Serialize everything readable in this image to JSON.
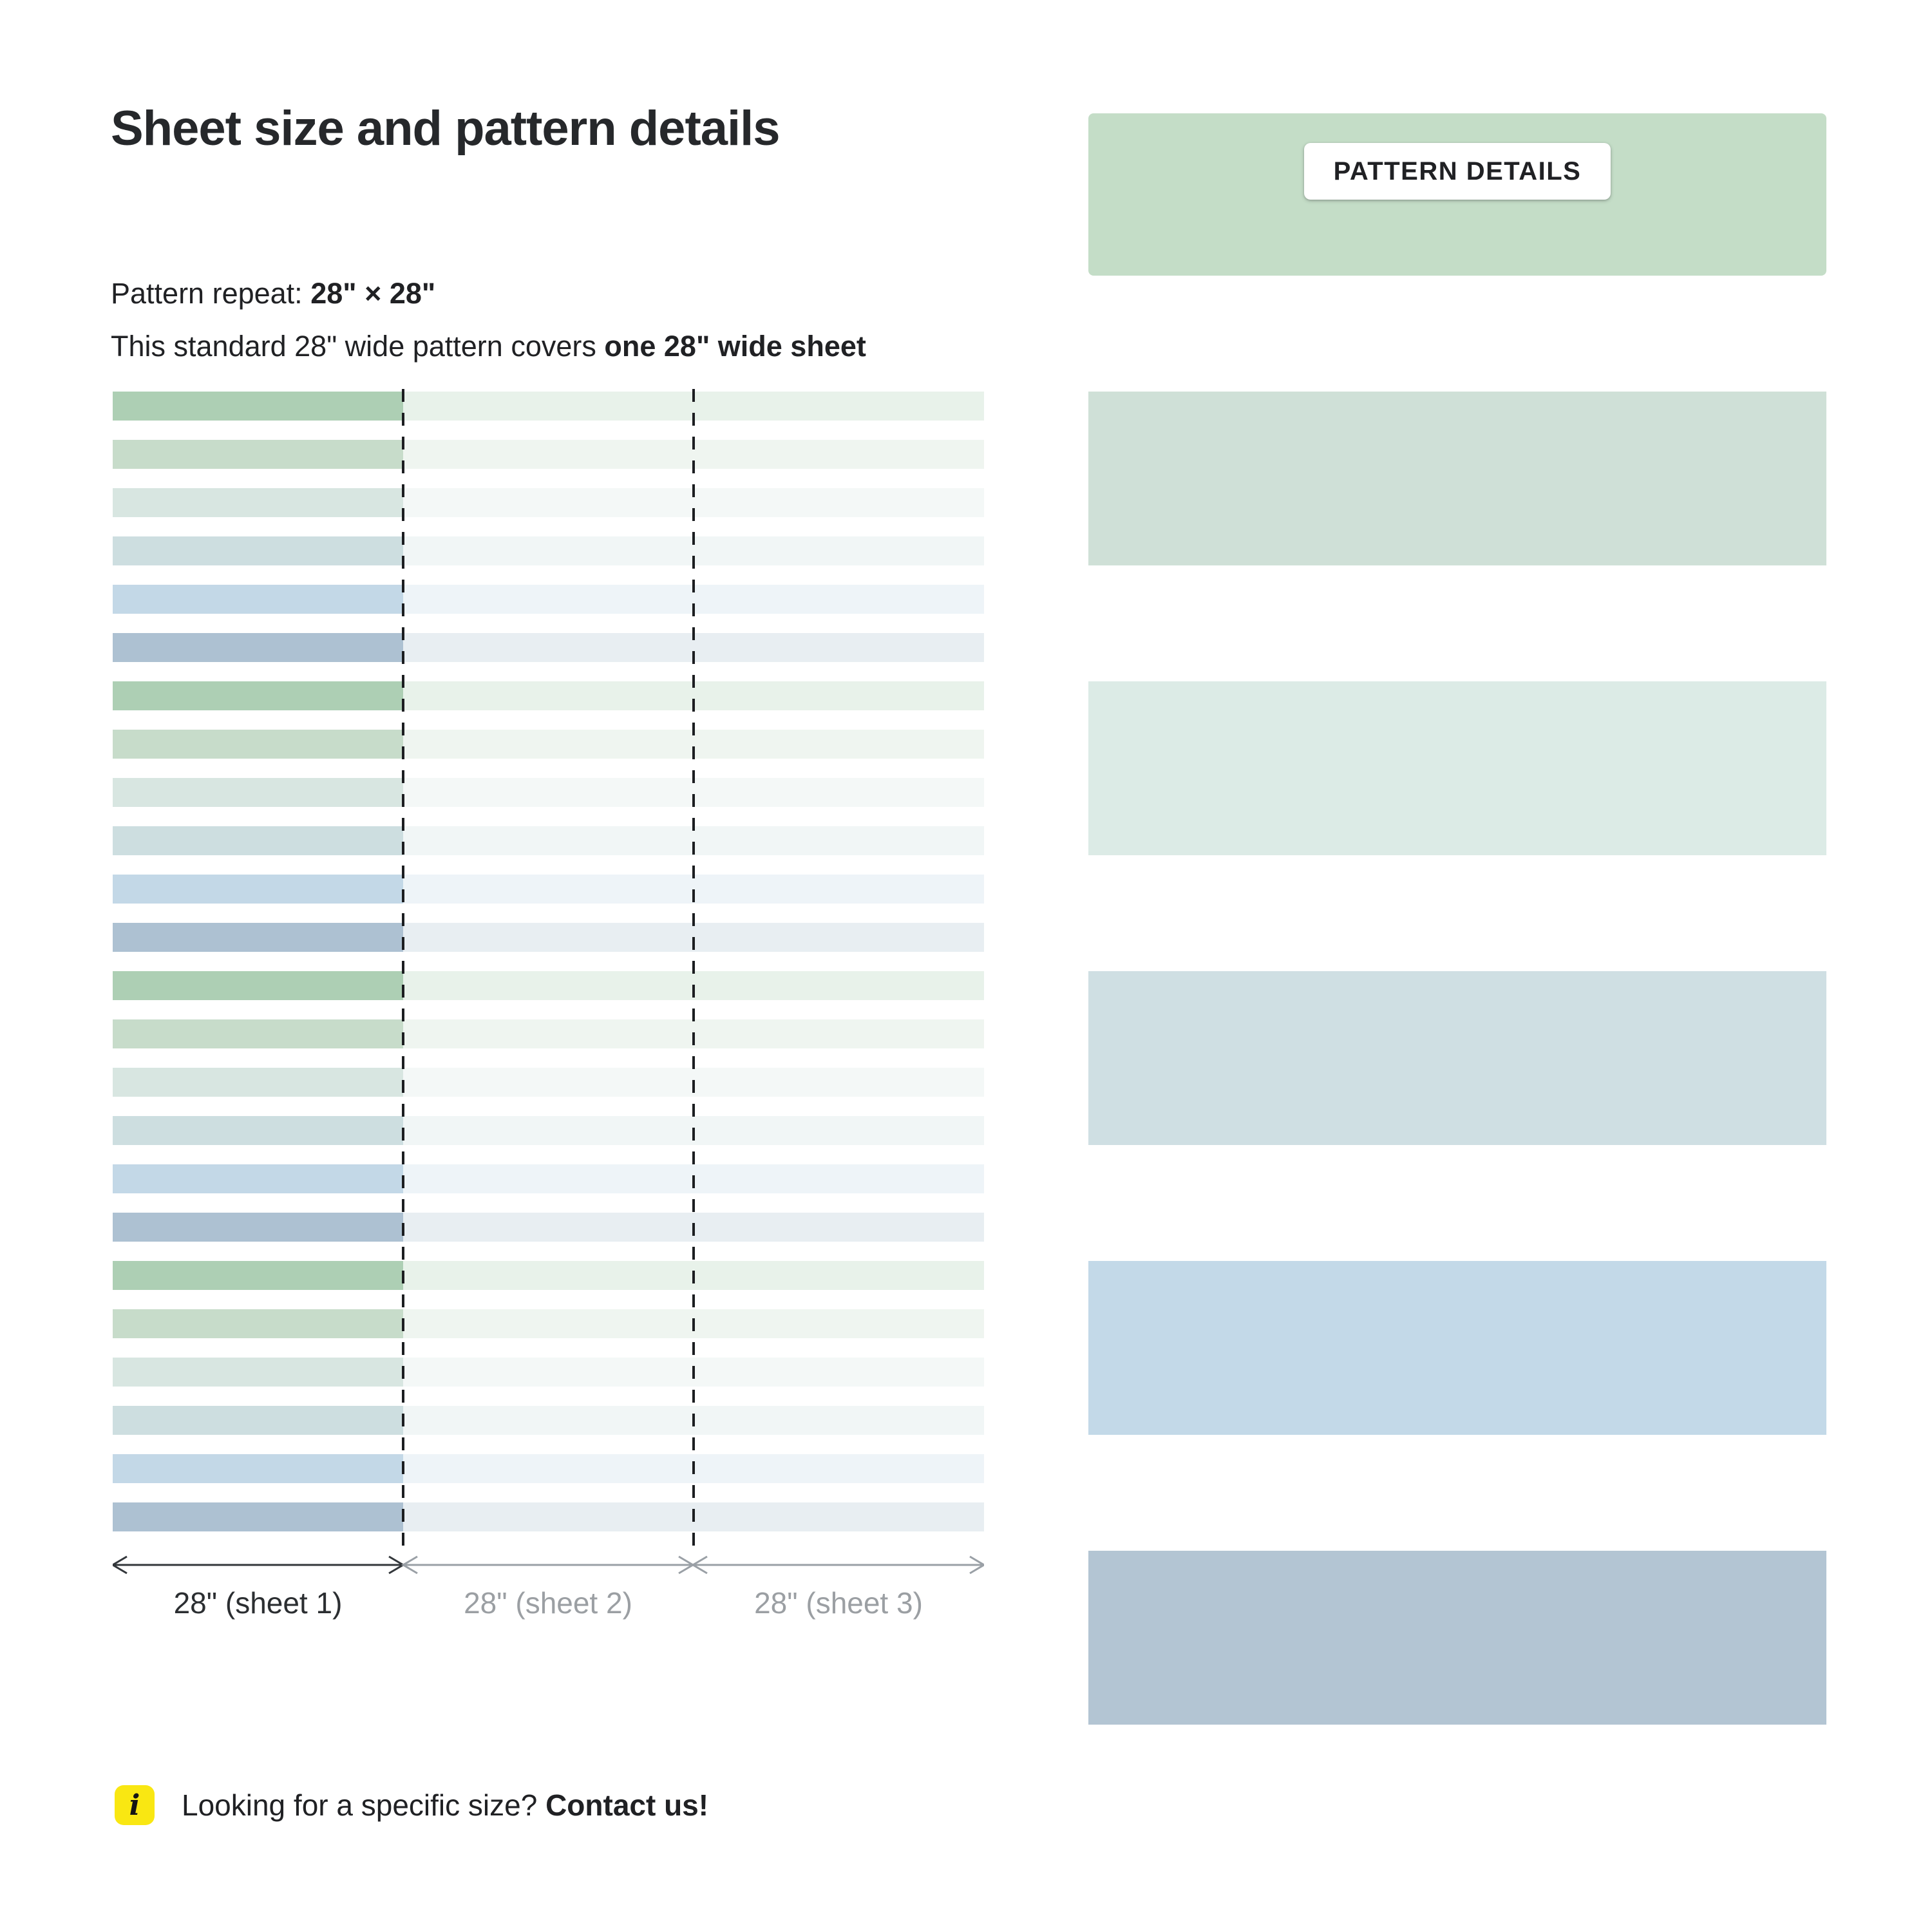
{
  "page": {
    "title": "Sheet size and pattern details",
    "pattern_repeat_label": "Pattern repeat:",
    "pattern_repeat_value": "28\" × 28\"",
    "coverage_text": "This standard 28\" wide pattern covers",
    "coverage_bold": "one 28\" wide sheet",
    "info": {
      "icon": "i",
      "icon_bg": "#f9e712",
      "text": "Looking for a specific size?",
      "link": "Contact us!"
    }
  },
  "diagram": {
    "stripe_colors": [
      "#adcfb4",
      "#c7dcca",
      "#d8e6e1",
      "#cddee0",
      "#c3d8e7",
      "#adc1d2"
    ],
    "stripe_count": 24,
    "faded_opacity": 0.28,
    "cut_line_color": "#1c1e21",
    "arrow": {
      "dark_color": "#33373b",
      "gray_color": "#9aa0a6"
    },
    "sheets": [
      {
        "label": "28\" (sheet 1)",
        "emphasized": true
      },
      {
        "label": "28\" (sheet 2)",
        "emphasized": false
      },
      {
        "label": "28\" (sheet 3)",
        "emphasized": false
      }
    ]
  },
  "panel": {
    "header_label": "PATTERN DETAILS",
    "header_bg": "#c4ddc7",
    "swatch_colors": [
      "#cfe0d7",
      "#dcebe6",
      "#cfdfe3",
      "#c3d9e8",
      "#b3c5d3"
    ]
  }
}
